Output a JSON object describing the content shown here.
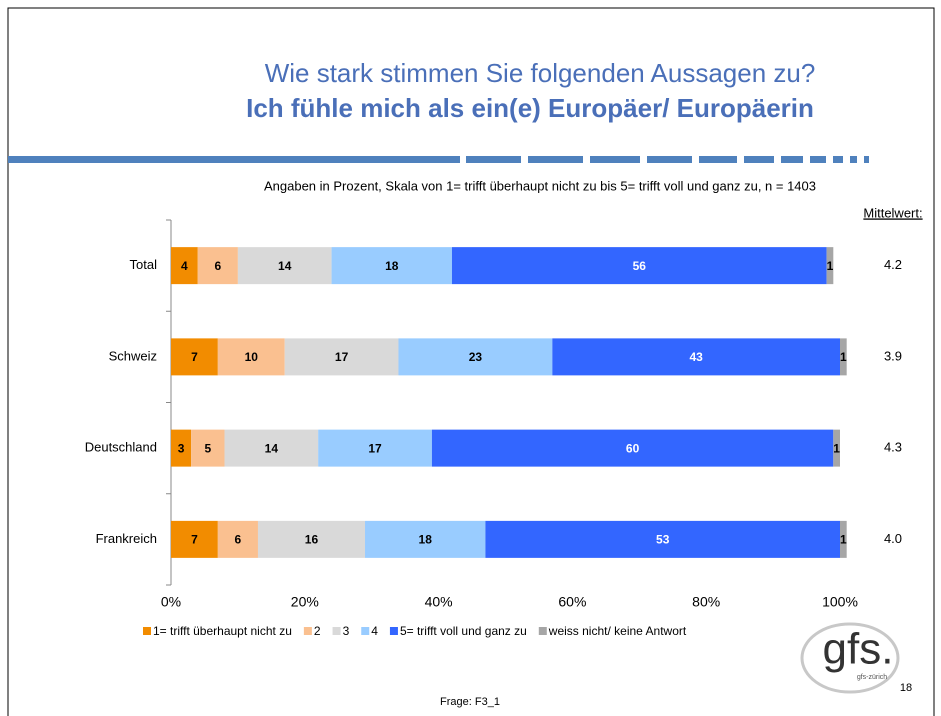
{
  "chart_data": {
    "type": "stacked_barh",
    "title": "Wie stark stimmen Sie folgenden Aussagen zu?",
    "subtitle": "Ich fühle mich als ein(e) Europäer/ Europäerin",
    "note": "Angaben in Prozent, Skala von 1= trifft überhaupt nicht zu bis 5= trifft voll und ganz zu, n = 1403",
    "categories": [
      "Total",
      "Schweiz",
      "Deutschland",
      "Frankreich"
    ],
    "series": [
      {
        "name": "1= trifft überhaupt nicht zu",
        "color": "#f28c00",
        "label_color": "#000000",
        "values": [
          4,
          7,
          3,
          7
        ]
      },
      {
        "name": "2",
        "color": "#fac090",
        "label_color": "#000000",
        "values": [
          6,
          10,
          5,
          6
        ]
      },
      {
        "name": "3",
        "color": "#d9d9d9",
        "label_color": "#000000",
        "values": [
          14,
          17,
          14,
          16
        ]
      },
      {
        "name": "4",
        "color": "#99ccff",
        "label_color": "#000000",
        "values": [
          18,
          23,
          17,
          18
        ]
      },
      {
        "name": "5= trifft voll und ganz zu",
        "color": "#3366ff",
        "label_color": "#ffffff",
        "values": [
          56,
          43,
          60,
          53
        ]
      },
      {
        "name": "weiss nicht/ keine Antwort",
        "color": "#a6a6a6",
        "label_color": "#000000",
        "values": [
          1,
          1,
          1,
          1
        ]
      }
    ],
    "xlim": [
      0,
      100
    ],
    "xticks": [
      {
        "value": 0,
        "label": "0%"
      },
      {
        "value": 20,
        "label": "20%"
      },
      {
        "value": 40,
        "label": "40%"
      },
      {
        "value": 60,
        "label": "60%"
      },
      {
        "value": 80,
        "label": "80%"
      },
      {
        "value": 100,
        "label": "100%"
      }
    ],
    "mean": {
      "label": "Mittelwert:",
      "values": [
        4.2,
        3.9,
        4.3,
        4.0
      ],
      "value_labels": [
        "4.2",
        "3.9",
        "4.3",
        "4.0"
      ]
    },
    "footer": "Frage: F3_1",
    "page_number": "18",
    "logo": "gfs.",
    "logo_sub": "gfs-zürich"
  }
}
